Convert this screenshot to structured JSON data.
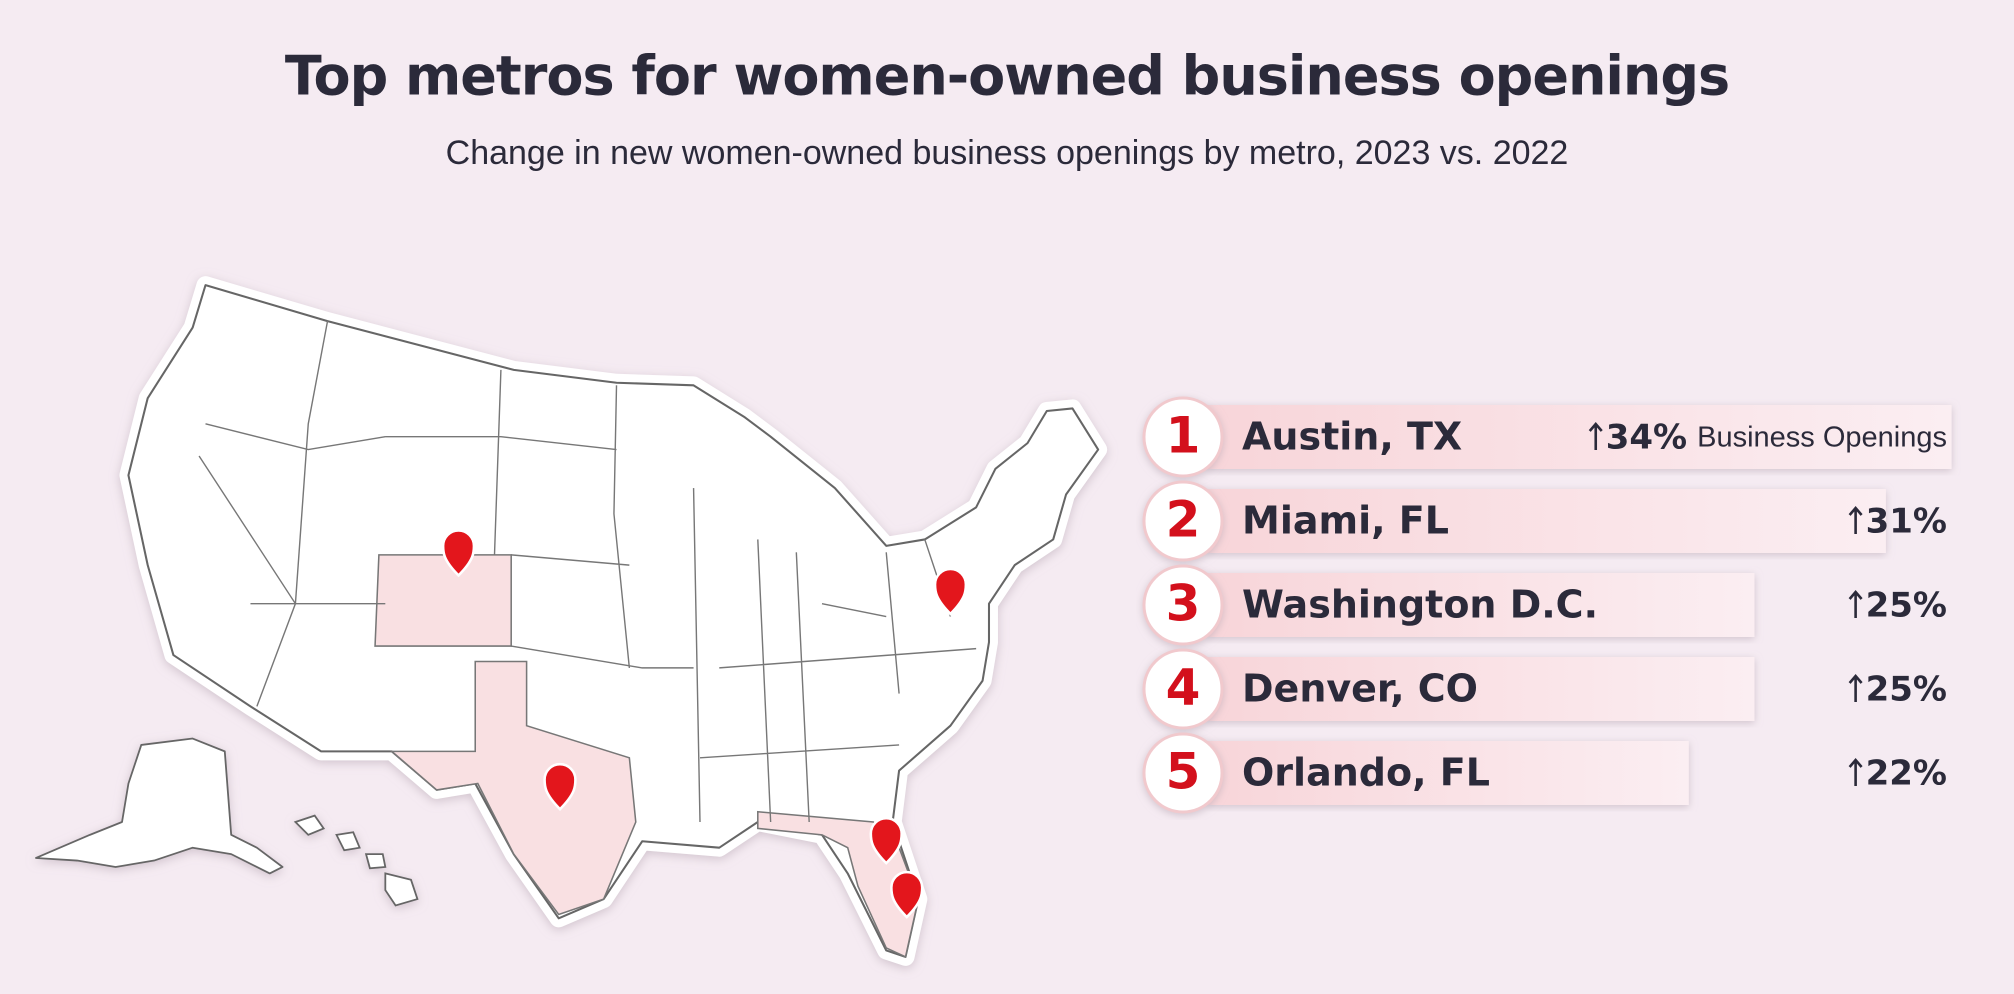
{
  "chart_data": {
    "type": "bar",
    "title": "Top metros for women-owned business openings",
    "subtitle": "Change in new women-owned business openings by metro, 2023 vs. 2022",
    "ranks": [
      1,
      2,
      3,
      4,
      5
    ],
    "categories": [
      "Austin, TX",
      "Miami, FL",
      "Washington D.C.",
      "Denver, CO",
      "Orlando, FL"
    ],
    "values": [
      34,
      31,
      25,
      25,
      22
    ],
    "value_labels": [
      "34%",
      "31%",
      "25%",
      "25%",
      "22%"
    ],
    "value_note": "Business Openings",
    "color": "#f8d5d9"
  }
}
